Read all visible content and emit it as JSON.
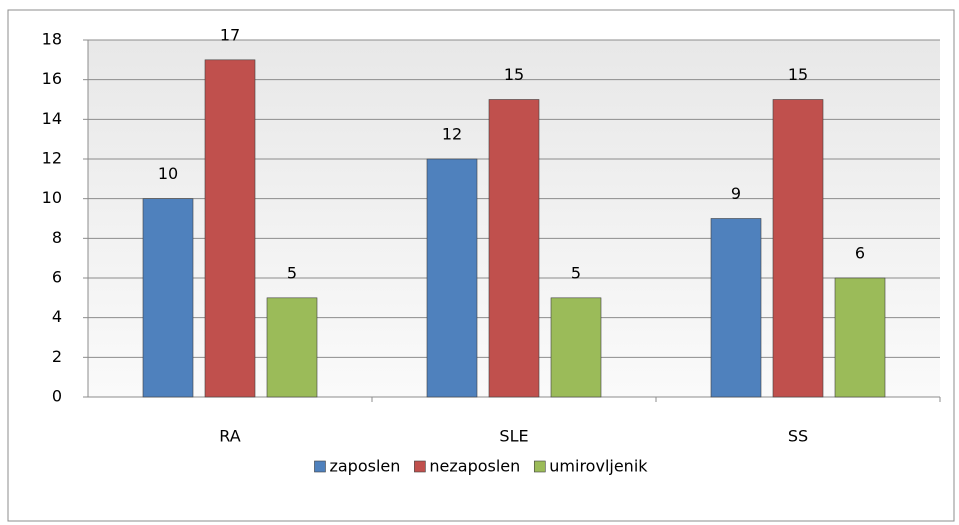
{
  "chart_data": {
    "type": "bar",
    "categories": [
      "RA",
      "SLE",
      "SS"
    ],
    "series": [
      {
        "name": "zaposlen",
        "color": "#4f81bd",
        "values": [
          10,
          12,
          9
        ]
      },
      {
        "name": "nezaposlen",
        "color": "#c0504d",
        "values": [
          17,
          15,
          15
        ]
      },
      {
        "name": "umirovljenik",
        "color": "#9bbb59",
        "values": [
          5,
          5,
          6
        ]
      }
    ],
    "ylim": [
      0,
      18
    ],
    "yticks": [
      0,
      2,
      4,
      6,
      8,
      10,
      12,
      14,
      16,
      18
    ],
    "grid": true,
    "legend": "bottom",
    "data_labels": true
  }
}
